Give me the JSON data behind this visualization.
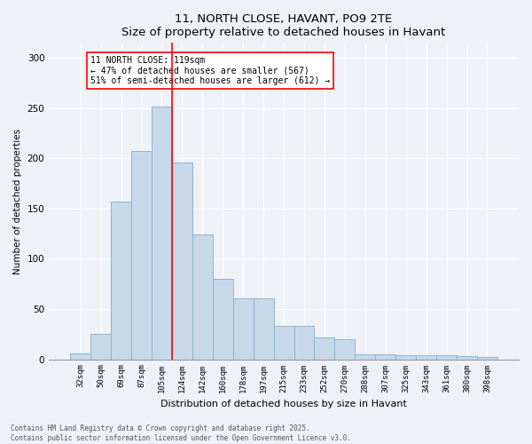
{
  "title1": "11, NORTH CLOSE, HAVANT, PO9 2TE",
  "title2": "Size of property relative to detached houses in Havant",
  "xlabel": "Distribution of detached houses by size in Havant",
  "ylabel": "Number of detached properties",
  "categories": [
    "32sqm",
    "50sqm",
    "69sqm",
    "87sqm",
    "105sqm",
    "124sqm",
    "142sqm",
    "160sqm",
    "178sqm",
    "197sqm",
    "215sqm",
    "233sqm",
    "252sqm",
    "270sqm",
    "288sqm",
    "307sqm",
    "325sqm",
    "343sqm",
    "361sqm",
    "380sqm",
    "398sqm"
  ],
  "values": [
    6,
    25,
    157,
    207,
    252,
    196,
    124,
    80,
    61,
    61,
    33,
    33,
    22,
    20,
    5,
    5,
    4,
    4,
    4,
    3,
    2
  ],
  "bar_color": "#c8d8eb",
  "bar_edgecolor": "#8ab4cc",
  "vline_color": "red",
  "annotation_text": "11 NORTH CLOSE: 119sqm\n← 47% of detached houses are smaller (567)\n51% of semi-detached houses are larger (612) →",
  "annotation_box_color": "white",
  "annotation_box_edgecolor": "red",
  "ylim": [
    0,
    315
  ],
  "yticks": [
    0,
    50,
    100,
    150,
    200,
    250,
    300
  ],
  "footer1": "Contains HM Land Registry data © Crown copyright and database right 2025.",
  "footer2": "Contains public sector information licensed under the Open Government Licence v3.0.",
  "bg_color": "#eef2f7"
}
